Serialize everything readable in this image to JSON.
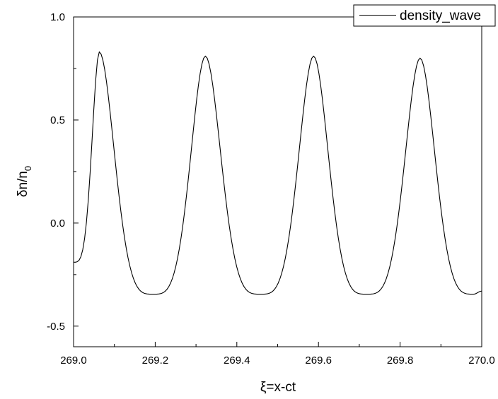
{
  "chart_data": {
    "type": "line",
    "title": "",
    "xlabel": "ξ=x-ct",
    "ylabel": "δn/n0",
    "ylabel_main": "δn/n",
    "ylabel_sub": "0",
    "xlim": [
      269.0,
      270.0
    ],
    "ylim": [
      -0.6,
      1.0
    ],
    "x_ticks": [
      269.0,
      269.2,
      269.4,
      269.6,
      269.8,
      270.0
    ],
    "x_tick_labels": [
      "269.0",
      "269.2",
      "269.4",
      "269.6",
      "269.8",
      "270.0"
    ],
    "y_ticks": [
      -0.5,
      0.0,
      0.5,
      1.0
    ],
    "y_tick_labels": [
      "-0.5",
      "0.0",
      "0.5",
      "1.0"
    ],
    "grid": false,
    "legend_position": "top-right",
    "color": "#000000",
    "series": [
      {
        "name": "density_wave",
        "peaks": [
          {
            "x": 269.063,
            "y": 0.83
          },
          {
            "x": 269.323,
            "y": 0.81
          },
          {
            "x": 269.588,
            "y": 0.81
          },
          {
            "x": 269.849,
            "y": 0.8
          }
        ],
        "troughs": [
          {
            "x": 269.195,
            "y": -0.345
          },
          {
            "x": 269.458,
            "y": -0.345
          },
          {
            "x": 269.718,
            "y": -0.345
          },
          {
            "x": 269.98,
            "y": -0.345
          }
        ],
        "start": {
          "x": 269.0,
          "y": -0.19
        },
        "end": {
          "x": 270.0,
          "y": -0.33
        }
      }
    ]
  }
}
